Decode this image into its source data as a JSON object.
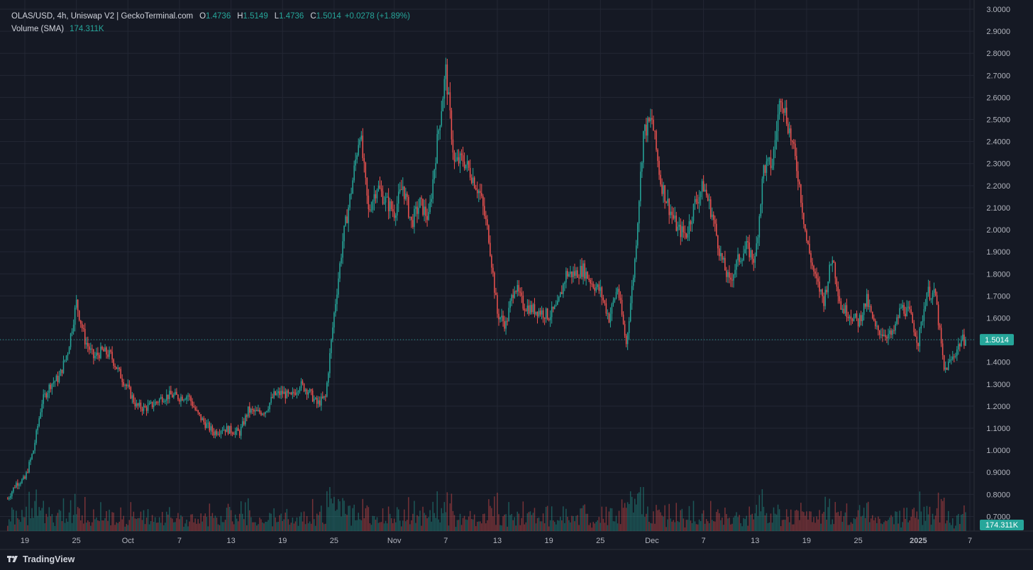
{
  "legend": {
    "title": "OLAS/USD, 4h, Uniswap V2 | GeckoTerminal.com",
    "open_label": "O",
    "open": "1.4736",
    "high_label": "H",
    "high": "1.5149",
    "low_label": "L",
    "low": "1.4736",
    "close_label": "C",
    "close": "1.5014",
    "change": "+0.0278 (+1.89%)",
    "volume_label": "Volume (SMA)",
    "volume_value": "174.311K"
  },
  "brand": {
    "name": "TradingView",
    "icon": "tradingview-logo-icon"
  },
  "colors": {
    "background": "#151924",
    "grid": "#232734",
    "up": "#26a69a",
    "down": "#ef5350",
    "text": "#d1d4dc",
    "last_price_badge": "#26a69a"
  },
  "chart_data": {
    "type": "candlestick",
    "symbol": "OLAS/USD",
    "interval": "4h",
    "source": "Uniswap V2 | GeckoTerminal.com",
    "y_axis": {
      "ylim": [
        0.65,
        3.0
      ],
      "ticks": [
        "0.7000",
        "0.8000",
        "0.9000",
        "1.0000",
        "1.1000",
        "1.2000",
        "1.3000",
        "1.4000",
        "1.5000",
        "1.6000",
        "1.7000",
        "1.8000",
        "1.9000",
        "2.0000",
        "2.1000",
        "2.2000",
        "2.3000",
        "2.4000",
        "2.5000",
        "2.6000",
        "2.7000",
        "2.8000",
        "2.9000",
        "3.0000"
      ]
    },
    "x_axis": {
      "ticks": [
        {
          "label": "19",
          "date": "2024-09-19"
        },
        {
          "label": "25",
          "date": "2024-09-25"
        },
        {
          "label": "Oct",
          "date": "2024-10-01"
        },
        {
          "label": "7",
          "date": "2024-10-07"
        },
        {
          "label": "13",
          "date": "2024-10-13"
        },
        {
          "label": "19",
          "date": "2024-10-19"
        },
        {
          "label": "25",
          "date": "2024-10-25"
        },
        {
          "label": "Nov",
          "date": "2024-11-01"
        },
        {
          "label": "7",
          "date": "2024-11-07"
        },
        {
          "label": "13",
          "date": "2024-11-13"
        },
        {
          "label": "19",
          "date": "2024-11-19"
        },
        {
          "label": "25",
          "date": "2024-11-25"
        },
        {
          "label": "Dec",
          "date": "2024-12-01"
        },
        {
          "label": "7",
          "date": "2024-12-07"
        },
        {
          "label": "13",
          "date": "2024-12-13"
        },
        {
          "label": "19",
          "date": "2024-12-19"
        },
        {
          "label": "25",
          "date": "2024-12-25"
        },
        {
          "label": "2025",
          "date": "2025-01-01"
        },
        {
          "label": "7",
          "date": "2025-01-07"
        }
      ]
    },
    "price_path": [
      [
        "2024-09-17",
        0.78
      ],
      [
        "2024-09-18",
        0.85
      ],
      [
        "2024-09-19",
        0.87
      ],
      [
        "2024-09-20",
        1.0
      ],
      [
        "2024-09-21",
        1.22
      ],
      [
        "2024-09-22",
        1.3
      ],
      [
        "2024-09-23",
        1.33
      ],
      [
        "2024-09-24",
        1.45
      ],
      [
        "2024-09-25",
        1.67
      ],
      [
        "2024-09-26",
        1.5
      ],
      [
        "2024-09-27",
        1.42
      ],
      [
        "2024-09-28",
        1.45
      ],
      [
        "2024-09-29",
        1.43
      ],
      [
        "2024-09-30",
        1.35
      ],
      [
        "2024-10-01",
        1.28
      ],
      [
        "2024-10-02",
        1.2
      ],
      [
        "2024-10-03",
        1.19
      ],
      [
        "2024-10-04",
        1.21
      ],
      [
        "2024-10-05",
        1.24
      ],
      [
        "2024-10-06",
        1.25
      ],
      [
        "2024-10-07",
        1.24
      ],
      [
        "2024-10-08",
        1.25
      ],
      [
        "2024-10-09",
        1.17
      ],
      [
        "2024-10-10",
        1.12
      ],
      [
        "2024-10-11",
        1.08
      ],
      [
        "2024-10-12",
        1.1
      ],
      [
        "2024-10-13",
        1.09
      ],
      [
        "2024-10-14",
        1.08
      ],
      [
        "2024-10-15",
        1.18
      ],
      [
        "2024-10-16",
        1.17
      ],
      [
        "2024-10-17",
        1.18
      ],
      [
        "2024-10-18",
        1.25
      ],
      [
        "2024-10-19",
        1.26
      ],
      [
        "2024-10-20",
        1.24
      ],
      [
        "2024-10-21",
        1.3
      ],
      [
        "2024-10-22",
        1.27
      ],
      [
        "2024-10-23",
        1.21
      ],
      [
        "2024-10-24",
        1.24
      ],
      [
        "2024-10-25",
        1.62
      ],
      [
        "2024-10-26",
        1.95
      ],
      [
        "2024-10-27",
        2.18
      ],
      [
        "2024-10-28",
        2.45
      ],
      [
        "2024-10-29",
        2.08
      ],
      [
        "2024-10-30",
        2.2
      ],
      [
        "2024-10-31",
        2.13
      ],
      [
        "2024-11-01",
        2.08
      ],
      [
        "2024-11-02",
        2.2
      ],
      [
        "2024-11-03",
        2.03
      ],
      [
        "2024-11-04",
        2.12
      ],
      [
        "2024-11-05",
        2.05
      ],
      [
        "2024-11-06",
        2.4
      ],
      [
        "2024-11-07",
        2.72
      ],
      [
        "2024-11-08",
        2.3
      ],
      [
        "2024-11-09",
        2.32
      ],
      [
        "2024-11-10",
        2.25
      ],
      [
        "2024-11-11",
        2.16
      ],
      [
        "2024-11-12",
        1.97
      ],
      [
        "2024-11-13",
        1.62
      ],
      [
        "2024-11-14",
        1.57
      ],
      [
        "2024-11-15",
        1.75
      ],
      [
        "2024-11-16",
        1.66
      ],
      [
        "2024-11-17",
        1.64
      ],
      [
        "2024-11-18",
        1.63
      ],
      [
        "2024-11-19",
        1.61
      ],
      [
        "2024-11-20",
        1.65
      ],
      [
        "2024-11-21",
        1.8
      ],
      [
        "2024-11-22",
        1.8
      ],
      [
        "2024-11-23",
        1.82
      ],
      [
        "2024-11-24",
        1.76
      ],
      [
        "2024-11-25",
        1.72
      ],
      [
        "2024-11-26",
        1.6
      ],
      [
        "2024-11-27",
        1.74
      ],
      [
        "2024-11-28",
        1.48
      ],
      [
        "2024-11-29",
        1.86
      ],
      [
        "2024-11-30",
        2.44
      ],
      [
        "2024-12-01",
        2.5
      ],
      [
        "2024-12-02",
        2.22
      ],
      [
        "2024-12-03",
        2.1
      ],
      [
        "2024-12-04",
        2.0
      ],
      [
        "2024-12-05",
        1.98
      ],
      [
        "2024-12-06",
        2.12
      ],
      [
        "2024-12-07",
        2.2
      ],
      [
        "2024-12-08",
        2.07
      ],
      [
        "2024-12-09",
        1.88
      ],
      [
        "2024-12-10",
        1.76
      ],
      [
        "2024-12-11",
        1.86
      ],
      [
        "2024-12-12",
        1.92
      ],
      [
        "2024-12-13",
        1.86
      ],
      [
        "2024-12-14",
        2.28
      ],
      [
        "2024-12-15",
        2.3
      ],
      [
        "2024-12-16",
        2.62
      ],
      [
        "2024-12-17",
        2.45
      ],
      [
        "2024-12-18",
        2.25
      ],
      [
        "2024-12-19",
        1.95
      ],
      [
        "2024-12-20",
        1.78
      ],
      [
        "2024-12-21",
        1.68
      ],
      [
        "2024-12-22",
        1.88
      ],
      [
        "2024-12-23",
        1.65
      ],
      [
        "2024-12-24",
        1.62
      ],
      [
        "2024-12-25",
        1.58
      ],
      [
        "2024-12-26",
        1.68
      ],
      [
        "2024-12-27",
        1.55
      ],
      [
        "2024-12-28",
        1.53
      ],
      [
        "2024-12-29",
        1.52
      ],
      [
        "2024-12-30",
        1.65
      ],
      [
        "2024-12-31",
        1.62
      ],
      [
        "2025-01-01",
        1.49
      ],
      [
        "2025-01-02",
        1.72
      ],
      [
        "2025-01-03",
        1.7
      ],
      [
        "2025-01-04",
        1.36
      ],
      [
        "2025-01-05",
        1.42
      ],
      [
        "2025-01-06",
        1.5
      ]
    ],
    "last_price": 1.5014,
    "volume_sma": "174.311K",
    "grid": true,
    "legend_position": "top-left"
  },
  "axis_badges": {
    "price": "1.5014",
    "volume": "174.311K"
  }
}
